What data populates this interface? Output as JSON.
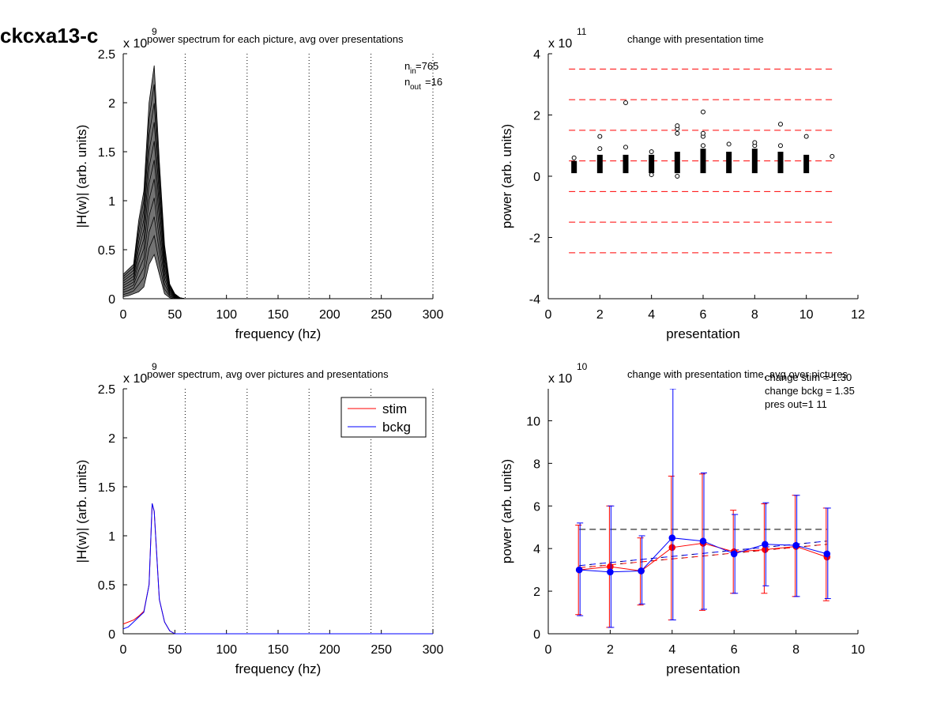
{
  "page_title": "ckcxa13-c",
  "colors": {
    "axis": "#000000",
    "stim": "#ff0000",
    "bckg": "#0000ff",
    "ref_line": "#ff0000"
  },
  "chart_data": [
    {
      "id": "p1",
      "type": "line",
      "title": "power spectrum for each picture, avg over presentations",
      "xlabel": "frequency (hz)",
      "ylabel": "|H(w)| (arb. units)",
      "exponent": "x 10",
      "exponent_power": "9",
      "xlim": [
        0,
        300
      ],
      "ylim": [
        0,
        2.5
      ],
      "xticks": [
        0,
        50,
        100,
        150,
        200,
        250,
        300
      ],
      "yticks": [
        0,
        0.5,
        1,
        1.5,
        2,
        2.5
      ],
      "vlines_dotted": [
        60,
        120,
        180,
        240,
        300
      ],
      "annotation": {
        "n_in_label": "n",
        "n_in_sub": "in",
        "n_in_value": "=765",
        "n_out_label": "n",
        "n_out_sub": "out",
        "n_out_value": "=16"
      },
      "series_note": "many overlaid per-picture spectra (black)",
      "freq": [
        0,
        5,
        10,
        15,
        20,
        25,
        30,
        35,
        40,
        45,
        50,
        55,
        60,
        80,
        300
      ],
      "envelope_max": [
        0.25,
        0.3,
        0.35,
        0.8,
        1.1,
        2.0,
        2.38,
        1.4,
        0.55,
        0.15,
        0.05,
        0.01,
        0.0,
        0.0,
        0.0
      ],
      "envelope_min": [
        0.02,
        0.03,
        0.05,
        0.07,
        0.12,
        0.35,
        0.45,
        0.25,
        0.05,
        0.01,
        0.0,
        0.0,
        0.0,
        0.0,
        0.0
      ]
    },
    {
      "id": "p2",
      "type": "scatter",
      "title": "change with presentation time",
      "xlabel": "presentation",
      "ylabel": "power (arb. units)",
      "exponent": "x 10",
      "exponent_power": "11",
      "xlim": [
        0,
        12
      ],
      "ylim": [
        -4,
        4
      ],
      "xticks": [
        0,
        2,
        4,
        6,
        8,
        10,
        12
      ],
      "yticks": [
        -4,
        -2,
        0,
        2,
        4
      ],
      "hlines_dashed": [
        3.5,
        2.5,
        1.5,
        0.5,
        -0.5,
        -1.5,
        -2.5
      ],
      "hline_x_range": [
        0.8,
        11
      ],
      "columns": [
        {
          "x": 1,
          "dense_min": 0.1,
          "dense_max": 0.5,
          "outliers": [
            0.6
          ]
        },
        {
          "x": 2,
          "dense_min": 0.1,
          "dense_max": 0.7,
          "outliers": [
            0.9,
            1.3
          ]
        },
        {
          "x": 3,
          "dense_min": 0.1,
          "dense_max": 0.7,
          "outliers": [
            0.95,
            2.4
          ]
        },
        {
          "x": 4,
          "dense_min": 0.1,
          "dense_max": 0.7,
          "outliers": [
            0.8,
            0.05
          ]
        },
        {
          "x": 5,
          "dense_min": 0.1,
          "dense_max": 0.8,
          "outliers": [
            1.4,
            1.55,
            1.65,
            0.0
          ]
        },
        {
          "x": 6,
          "dense_min": 0.1,
          "dense_max": 0.9,
          "outliers": [
            1.0,
            1.3,
            1.4,
            2.1
          ]
        },
        {
          "x": 7,
          "dense_min": 0.1,
          "dense_max": 0.8,
          "outliers": [
            1.05
          ]
        },
        {
          "x": 8,
          "dense_min": 0.1,
          "dense_max": 0.9,
          "outliers": [
            1.0,
            1.1
          ]
        },
        {
          "x": 9,
          "dense_min": 0.1,
          "dense_max": 0.8,
          "outliers": [
            1.0,
            1.7
          ]
        },
        {
          "x": 10,
          "dense_min": 0.1,
          "dense_max": 0.7,
          "outliers": [
            1.3
          ]
        },
        {
          "x": 11,
          "dense_min": 0.65,
          "dense_max": 0.65,
          "outliers": []
        }
      ]
    },
    {
      "id": "p3",
      "type": "line",
      "title": "power spectrum, avg over pictures and presentations",
      "xlabel": "frequency (hz)",
      "ylabel": "|H(w)| (arb. units)",
      "exponent": "x 10",
      "exponent_power": "9",
      "xlim": [
        0,
        300
      ],
      "ylim": [
        0,
        2.5
      ],
      "xticks": [
        0,
        50,
        100,
        150,
        200,
        250,
        300
      ],
      "yticks": [
        0,
        0.5,
        1,
        1.5,
        2,
        2.5
      ],
      "vlines_dotted": [
        60,
        120,
        180,
        240,
        300
      ],
      "legend": {
        "position": "top-right",
        "entries": [
          "stim",
          "bckg"
        ]
      },
      "series": [
        {
          "name": "stim",
          "x": [
            0,
            5,
            10,
            15,
            20,
            25,
            28,
            30,
            35,
            40,
            45,
            50,
            60,
            300
          ],
          "y": [
            0.1,
            0.12,
            0.14,
            0.18,
            0.23,
            0.5,
            1.33,
            1.25,
            0.35,
            0.12,
            0.03,
            0.0,
            0.0,
            0.0
          ]
        },
        {
          "name": "bckg",
          "x": [
            0,
            5,
            10,
            15,
            20,
            25,
            28,
            30,
            35,
            40,
            45,
            50,
            60,
            300
          ],
          "y": [
            0.05,
            0.07,
            0.12,
            0.17,
            0.22,
            0.5,
            1.33,
            1.25,
            0.35,
            0.12,
            0.03,
            0.0,
            0.0,
            0.0
          ]
        }
      ]
    },
    {
      "id": "p4",
      "type": "line",
      "title": "change with presentation time, avg over pictures",
      "xlabel": "presentation",
      "ylabel": "power (arb. units)",
      "exponent": "x 10",
      "exponent_power": "10",
      "xlim": [
        0,
        10
      ],
      "ylim": [
        0,
        11.5
      ],
      "xticks": [
        0,
        2,
        4,
        6,
        8,
        10
      ],
      "yticks": [
        0,
        2,
        4,
        6,
        8,
        10
      ],
      "annotations": [
        "change stim = 1.30",
        "change bckg = 1.35",
        "pres out=1 11"
      ],
      "hline_dashed": {
        "y": 4.9,
        "x_range": [
          1,
          9
        ]
      },
      "trend_lines": [
        {
          "name": "stim",
          "x": [
            1,
            9
          ],
          "y": [
            3.1,
            4.2
          ]
        },
        {
          "name": "bckg",
          "x": [
            1,
            9
          ],
          "y": [
            3.2,
            4.35
          ]
        }
      ],
      "series": [
        {
          "name": "stim",
          "x": [
            1,
            2,
            3,
            4,
            5,
            6,
            7,
            8,
            9
          ],
          "y": [
            3.0,
            3.15,
            2.95,
            4.05,
            4.25,
            3.85,
            3.95,
            4.1,
            3.6
          ],
          "err_low": [
            0.9,
            0.3,
            1.35,
            0.65,
            1.1,
            1.9,
            1.9,
            1.75,
            1.55
          ],
          "err_high": [
            5.1,
            6.0,
            4.5,
            7.4,
            7.5,
            5.8,
            6.1,
            6.5,
            5.9
          ]
        },
        {
          "name": "bckg",
          "x": [
            1,
            2,
            3,
            4,
            5,
            6,
            7,
            8,
            9
          ],
          "y": [
            3.0,
            2.9,
            2.95,
            4.5,
            4.35,
            3.75,
            4.2,
            4.15,
            3.75
          ],
          "err_low": [
            0.85,
            0.3,
            1.4,
            0.65,
            1.15,
            1.9,
            2.25,
            1.75,
            1.65
          ],
          "err_high": [
            5.2,
            6.0,
            4.6,
            11.5,
            7.55,
            5.6,
            6.15,
            6.5,
            5.9
          ]
        }
      ]
    }
  ]
}
